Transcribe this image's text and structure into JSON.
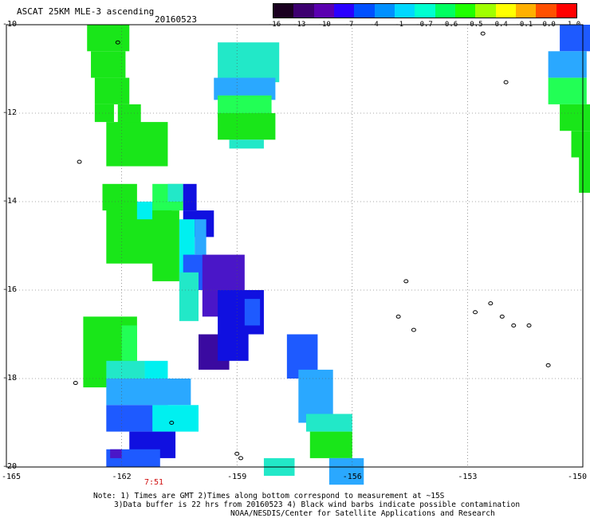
{
  "header": {
    "product": "ASCAT 25KM MLE-3 ascending",
    "date": "20160523"
  },
  "colorbar": {
    "ticks": [
      "-16",
      "-13",
      "-10",
      "-7",
      "-4",
      "-1",
      "-0.7",
      "-0.6",
      "-0.5",
      "-0.4",
      "-0.1",
      "0.0",
      "1.0"
    ],
    "colors": [
      "#1a0020",
      "#3d0070",
      "#5a00b0",
      "#2a00ff",
      "#0050ff",
      "#0090ff",
      "#00d8ff",
      "#00ffd0",
      "#00ff60",
      "#20ff00",
      "#a0ff00",
      "#ffff00",
      "#ffb000",
      "#ff5000",
      "#ff0000"
    ]
  },
  "axes": {
    "lat_labels": [
      "-10",
      "-12",
      "-14",
      "-16",
      "-18",
      "-20"
    ],
    "lon_labels": [
      "-165",
      "-162",
      "-159",
      "-156",
      "-153",
      "-150"
    ]
  },
  "time_label": "7:51",
  "notes": {
    "line1": "Note: 1) Times are GMT 2)Times along bottom correspond to measurement at ~15S",
    "line2": "3)Data buffer is 22 hrs from 20160523 4) Black wind barbs indicate possible contamination",
    "line3": "NOAA/NESDIS/Center for Satellite Applications and Research"
  },
  "palette": {
    "green": "#19e619",
    "light_green": "#22ff55",
    "cyan": "#00f0f0",
    "aqua": "#22e8c8",
    "sky": "#2aa8ff",
    "blue": "#1e5aff",
    "deep_blue": "#1010e0",
    "purple": "#4a16c8",
    "dark_purple": "#3a0aa0"
  },
  "swaths": [
    {
      "id": "swath-a",
      "cells": [
        {
          "x": -162.9,
          "y": -10,
          "w": 1.1,
          "h": 0.6,
          "c": "green"
        },
        {
          "x": -162.8,
          "y": -10.6,
          "w": 0.9,
          "h": 0.6,
          "c": "green"
        },
        {
          "x": -162.7,
          "y": -11.2,
          "w": 0.9,
          "h": 0.6,
          "c": "green"
        },
        {
          "x": -162.7,
          "y": -11.8,
          "w": 0.5,
          "h": 0.4,
          "c": "green"
        },
        {
          "x": -162.1,
          "y": -11.8,
          "w": 0.6,
          "h": 0.6,
          "c": "green"
        },
        {
          "x": -162.4,
          "y": -12.2,
          "w": 1.6,
          "h": 1.0,
          "c": "green"
        },
        {
          "x": -162.5,
          "y": -13.6,
          "w": 0.9,
          "h": 0.6,
          "c": "green"
        },
        {
          "x": -162.4,
          "y": -14.0,
          "w": 1.7,
          "h": 1.4,
          "c": "green"
        },
        {
          "x": -161.6,
          "y": -14.0,
          "w": 0.4,
          "h": 0.4,
          "c": "cyan"
        },
        {
          "x": -161.2,
          "y": -13.6,
          "w": 0.8,
          "h": 0.6,
          "c": "light_green"
        },
        {
          "x": -160.8,
          "y": -13.6,
          "w": 0.4,
          "h": 0.4,
          "c": "aqua"
        },
        {
          "x": -160.4,
          "y": -13.6,
          "w": 0.35,
          "h": 0.6,
          "c": "deep_blue"
        },
        {
          "x": -160.4,
          "y": -14.2,
          "w": 0.8,
          "h": 0.6,
          "c": "deep_blue"
        },
        {
          "x": -160.5,
          "y": -14.4,
          "w": 0.4,
          "h": 1.4,
          "c": "cyan"
        },
        {
          "x": -161.2,
          "y": -14.2,
          "w": 0.7,
          "h": 1.6,
          "c": "green"
        },
        {
          "x": -160.1,
          "y": -14.4,
          "w": 0.3,
          "h": 0.8,
          "c": "sky"
        },
        {
          "x": -160.4,
          "y": -15.2,
          "w": 0.6,
          "h": 0.8,
          "c": "blue"
        },
        {
          "x": -160.5,
          "y": -15.6,
          "w": 0.5,
          "h": 1.1,
          "c": "aqua"
        },
        {
          "x": -159.9,
          "y": -15.2,
          "w": 1.1,
          "h": 1.4,
          "c": "purple"
        },
        {
          "x": -159.5,
          "y": -16.0,
          "w": 1.2,
          "h": 1.0,
          "c": "deep_blue"
        },
        {
          "x": -158.8,
          "y": -16.2,
          "w": 0.4,
          "h": 0.6,
          "c": "blue"
        },
        {
          "x": -163.0,
          "y": -16.6,
          "w": 1.4,
          "h": 1.6,
          "c": "green"
        },
        {
          "x": -162.0,
          "y": -16.8,
          "w": 0.4,
          "h": 0.8,
          "c": "light_green"
        },
        {
          "x": -160.0,
          "y": -17.0,
          "w": 0.8,
          "h": 0.8,
          "c": "dark_purple"
        },
        {
          "x": -159.5,
          "y": -17.0,
          "w": 0.8,
          "h": 0.6,
          "c": "deep_blue"
        },
        {
          "x": -162.4,
          "y": -17.6,
          "w": 1.0,
          "h": 0.4,
          "c": "aqua"
        },
        {
          "x": -161.4,
          "y": -17.6,
          "w": 0.6,
          "h": 0.6,
          "c": "cyan"
        },
        {
          "x": -162.4,
          "y": -18.0,
          "w": 2.2,
          "h": 0.6,
          "c": "sky"
        },
        {
          "x": -162.4,
          "y": -18.6,
          "w": 1.6,
          "h": 0.6,
          "c": "blue"
        },
        {
          "x": -161.2,
          "y": -18.6,
          "w": 1.2,
          "h": 0.6,
          "c": "cyan"
        },
        {
          "x": -161.8,
          "y": -19.2,
          "w": 1.2,
          "h": 0.6,
          "c": "deep_blue"
        },
        {
          "x": -162.4,
          "y": -19.6,
          "w": 1.4,
          "h": 0.4,
          "c": "blue"
        },
        {
          "x": -162.3,
          "y": -19.6,
          "w": 0.3,
          "h": 0.2,
          "c": "purple"
        }
      ]
    },
    {
      "id": "swath-b",
      "cells": [
        {
          "x": -159.5,
          "y": -10.4,
          "w": 1.6,
          "h": 0.9,
          "c": "aqua"
        },
        {
          "x": -159.6,
          "y": -11.2,
          "w": 1.6,
          "h": 0.5,
          "c": "sky"
        },
        {
          "x": -159.5,
          "y": -11.6,
          "w": 1.4,
          "h": 0.5,
          "c": "light_green"
        },
        {
          "x": -159.5,
          "y": -12.0,
          "w": 1.5,
          "h": 0.6,
          "c": "green"
        },
        {
          "x": -159.2,
          "y": -12.6,
          "w": 0.9,
          "h": 0.2,
          "c": "aqua"
        }
      ]
    },
    {
      "id": "swath-c",
      "cells": [
        {
          "x": -157.7,
          "y": -17.0,
          "w": 0.8,
          "h": 1.0,
          "c": "blue"
        },
        {
          "x": -157.4,
          "y": -17.8,
          "w": 0.9,
          "h": 1.2,
          "c": "sky"
        },
        {
          "x": -157.2,
          "y": -18.8,
          "w": 1.2,
          "h": 0.4,
          "c": "aqua"
        },
        {
          "x": -157.1,
          "y": -19.2,
          "w": 1.1,
          "h": 0.6,
          "c": "green"
        },
        {
          "x": -156.6,
          "y": -19.8,
          "w": 0.9,
          "h": 0.6,
          "c": "sky"
        },
        {
          "x": -158.3,
          "y": -19.8,
          "w": 0.8,
          "h": 0.4,
          "c": "aqua"
        }
      ]
    },
    {
      "id": "swath-d",
      "cells": [
        {
          "x": -150.6,
          "y": -10.0,
          "w": 1.0,
          "h": 0.6,
          "c": "blue"
        },
        {
          "x": -150.9,
          "y": -10.6,
          "w": 1.0,
          "h": 0.6,
          "c": "sky"
        },
        {
          "x": -150.9,
          "y": -11.2,
          "w": 1.0,
          "h": 0.6,
          "c": "light_green"
        },
        {
          "x": -150.6,
          "y": -11.8,
          "w": 0.9,
          "h": 0.6,
          "c": "green"
        },
        {
          "x": -150.3,
          "y": -12.4,
          "w": 0.6,
          "h": 0.6,
          "c": "green"
        },
        {
          "x": -150.1,
          "y": -13.0,
          "w": 0.4,
          "h": 0.8,
          "c": "green"
        }
      ]
    }
  ],
  "islands": [
    {
      "x": -162.1,
      "y": -10.4
    },
    {
      "x": -163.1,
      "y": -13.1
    },
    {
      "x": -163.2,
      "y": -18.1
    },
    {
      "x": -160.7,
      "y": -19.0
    },
    {
      "x": -159.0,
      "y": -19.7
    },
    {
      "x": -154.8,
      "y": -16.6
    },
    {
      "x": -154.6,
      "y": -15.8
    },
    {
      "x": -154.4,
      "y": -16.9
    },
    {
      "x": -152.8,
      "y": -16.5
    },
    {
      "x": -152.4,
      "y": -16.3
    },
    {
      "x": -152.1,
      "y": -16.6
    },
    {
      "x": -151.8,
      "y": -16.8
    },
    {
      "x": -151.4,
      "y": -16.8
    },
    {
      "x": -150.9,
      "y": -17.7
    },
    {
      "x": -152.6,
      "y": -10.2
    },
    {
      "x": -152.0,
      "y": -11.3
    },
    {
      "x": -158.9,
      "y": -19.8
    }
  ]
}
